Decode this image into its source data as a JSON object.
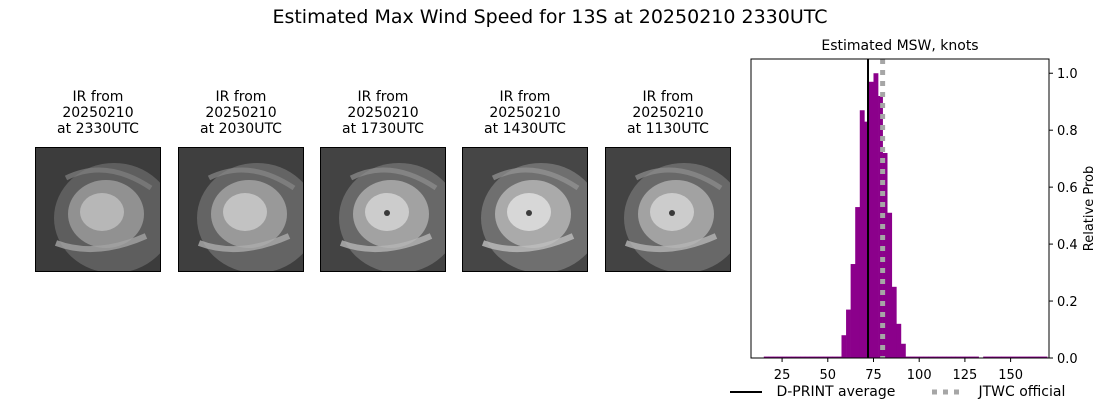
{
  "suptitle": "Estimated Max Wind Speed for 13S at 20250210 2330UTC",
  "panels": [
    {
      "line1": "IR from",
      "line2": "20250210",
      "line3": "at 2330UTC",
      "brightness": 0.85
    },
    {
      "line1": "IR from",
      "line2": "20250210",
      "line3": "at 2030UTC",
      "brightness": 0.9
    },
    {
      "line1": "IR from",
      "line2": "20250210",
      "line3": "at 1730UTC",
      "brightness": 0.95
    },
    {
      "line1": "IR from",
      "line2": "20250210",
      "line3": "at 1430UTC",
      "brightness": 1.0
    },
    {
      "line1": "IR from",
      "line2": "20250210",
      "line3": "at 1130UTC",
      "brightness": 0.95
    }
  ],
  "colors": {
    "bar": "#8b008b",
    "dprint": "#000000",
    "jtwc": "#a6a6a6"
  },
  "chart_data": {
    "type": "bar",
    "title": "Estimated MSW, knots",
    "xlabel": "",
    "ylabel": "Relative Prob",
    "xlim": [
      8,
      171
    ],
    "ylim": [
      0,
      1.05
    ],
    "xticks": [
      25,
      50,
      75,
      100,
      125,
      150
    ],
    "yticks": [
      "0.0",
      "0.2",
      "0.4",
      "0.6",
      "0.8",
      "1.0"
    ],
    "bin_width": 2.5,
    "bin_left_edges": [
      15,
      17.5,
      20,
      22.5,
      25,
      27.5,
      30,
      32.5,
      35,
      37.5,
      40,
      42.5,
      45,
      47.5,
      50,
      52.5,
      55,
      57.5,
      60,
      62.5,
      65,
      67.5,
      70,
      72.5,
      75,
      77.5,
      80,
      82.5,
      85,
      87.5,
      90,
      92.5,
      95,
      97.5,
      100,
      102.5,
      105,
      107.5,
      110,
      112.5,
      115,
      117.5,
      120,
      122.5,
      125,
      127.5,
      130,
      135,
      140,
      145,
      150,
      155,
      160,
      165
    ],
    "values": [
      0.005,
      0.005,
      0.005,
      0.005,
      0.005,
      0.005,
      0.005,
      0.005,
      0.005,
      0.005,
      0.005,
      0.005,
      0.005,
      0.005,
      0.005,
      0.005,
      0.005,
      0.08,
      0.17,
      0.33,
      0.53,
      0.87,
      0.83,
      0.97,
      1.0,
      0.92,
      0.72,
      0.51,
      0.25,
      0.12,
      0.05,
      0.005,
      0.005,
      0.005,
      0.005,
      0.005,
      0.005,
      0.005,
      0.005,
      0.005,
      0.005,
      0.005,
      0.005,
      0.005,
      0.005,
      0.005,
      0.005,
      0.005,
      0.005,
      0.005,
      0.005,
      0.005,
      0.005,
      0.005
    ],
    "dprint_average": 72,
    "jtwc_official": 80,
    "legend": [
      {
        "label": "D-PRINT average",
        "style": "solid"
      },
      {
        "label": "JTWC official",
        "style": "dotted"
      }
    ],
    "legend_position": "bottom"
  }
}
